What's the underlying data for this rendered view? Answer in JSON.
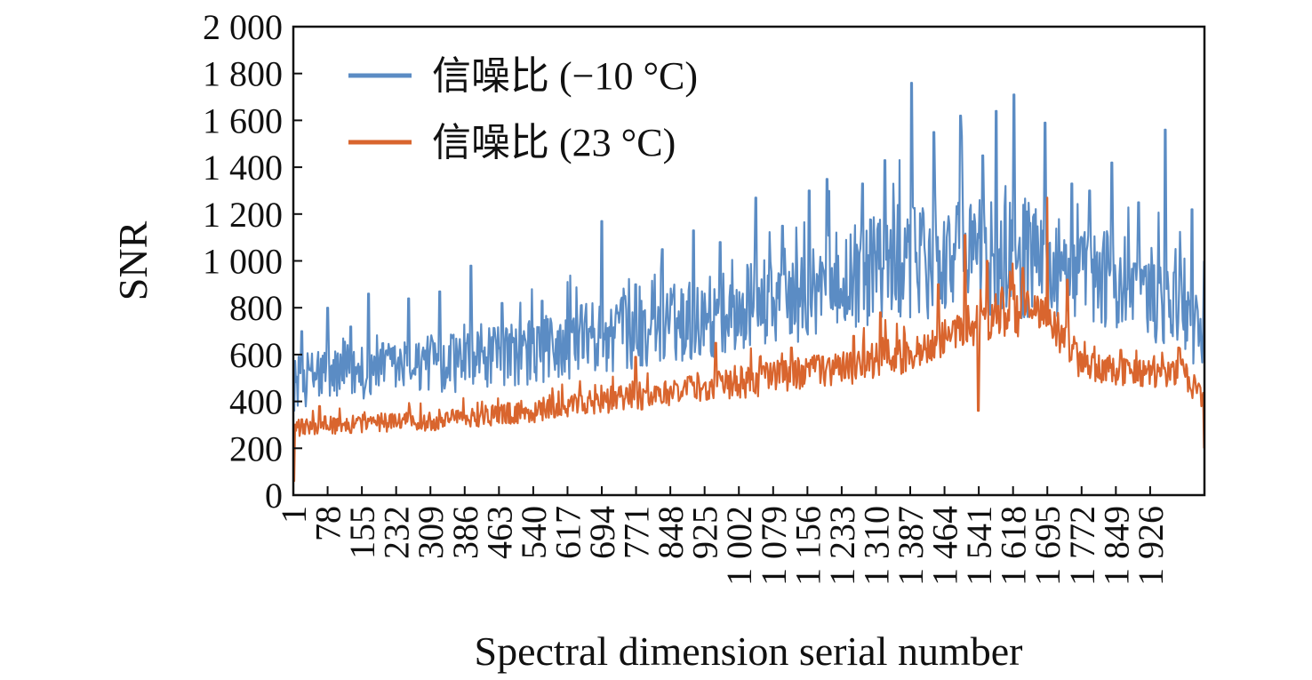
{
  "chart_data": {
    "type": "line",
    "title": "",
    "xlabel": "Spectral dimension serial number",
    "ylabel": "SNR",
    "x_range": [
      1,
      2048
    ],
    "ylim": [
      0,
      2000
    ],
    "grid": false,
    "legend_position": "top-left",
    "y_ticks": [
      {
        "value": 0,
        "label": "0"
      },
      {
        "value": 200,
        "label": "200"
      },
      {
        "value": 400,
        "label": "400"
      },
      {
        "value": 600,
        "label": "600"
      },
      {
        "value": 800,
        "label": "800"
      },
      {
        "value": 1000,
        "label": "1 000"
      },
      {
        "value": 1200,
        "label": "1 200"
      },
      {
        "value": 1400,
        "label": "1 400"
      },
      {
        "value": 1600,
        "label": "1 600"
      },
      {
        "value": 1800,
        "label": "1 800"
      },
      {
        "value": 2000,
        "label": "2 000"
      }
    ],
    "x_ticks": [
      {
        "value": 1,
        "label": "1"
      },
      {
        "value": 78,
        "label": "78"
      },
      {
        "value": 155,
        "label": "155"
      },
      {
        "value": 232,
        "label": "232"
      },
      {
        "value": 309,
        "label": "309"
      },
      {
        "value": 386,
        "label": "386"
      },
      {
        "value": 463,
        "label": "463"
      },
      {
        "value": 540,
        "label": "540"
      },
      {
        "value": 617,
        "label": "617"
      },
      {
        "value": 694,
        "label": "694"
      },
      {
        "value": 771,
        "label": "771"
      },
      {
        "value": 848,
        "label": "848"
      },
      {
        "value": 925,
        "label": "925"
      },
      {
        "value": 1002,
        "label": "1 002"
      },
      {
        "value": 1079,
        "label": "1 079"
      },
      {
        "value": 1156,
        "label": "1 156"
      },
      {
        "value": 1233,
        "label": "1 233"
      },
      {
        "value": 1310,
        "label": "1 310"
      },
      {
        "value": 1387,
        "label": "1 387"
      },
      {
        "value": 1464,
        "label": "1 464"
      },
      {
        "value": 1541,
        "label": "1 541"
      },
      {
        "value": 1618,
        "label": "1 618"
      },
      {
        "value": 1695,
        "label": "1 695"
      },
      {
        "value": 1772,
        "label": "1 772"
      },
      {
        "value": 1849,
        "label": "1 849"
      },
      {
        "value": 1926,
        "label": "1 926"
      }
    ],
    "series": [
      {
        "name": "信噪比 (−10 °C)",
        "color": "#5b8cc4",
        "x": [
          1,
          40,
          78,
          155,
          232,
          309,
          386,
          463,
          540,
          617,
          694,
          771,
          848,
          925,
          1002,
          1079,
          1156,
          1233,
          1310,
          1387,
          1464,
          1541,
          1618,
          1695,
          1772,
          1849,
          1926,
          2000,
          2048
        ],
        "baseline": [
          480,
          500,
          520,
          530,
          540,
          560,
          570,
          590,
          610,
          640,
          680,
          700,
          730,
          760,
          790,
          830,
          870,
          920,
          960,
          990,
          1000,
          1030,
          1030,
          980,
          920,
          880,
          860,
          850,
          600
        ],
        "spread": [
          110,
          120,
          120,
          120,
          120,
          120,
          130,
          130,
          140,
          150,
          160,
          160,
          170,
          180,
          190,
          200,
          210,
          220,
          230,
          240,
          250,
          260,
          270,
          240,
          220,
          210,
          210,
          210,
          150
        ],
        "spikes": [
          [
            20,
            700
          ],
          [
            78,
            800
          ],
          [
            130,
            720
          ],
          [
            170,
            860
          ],
          [
            260,
            840
          ],
          [
            330,
            870
          ],
          [
            400,
            980
          ],
          [
            470,
            820
          ],
          [
            560,
            830
          ],
          [
            617,
            910
          ],
          [
            694,
            1170
          ],
          [
            770,
            900
          ],
          [
            830,
            1050
          ],
          [
            900,
            1130
          ],
          [
            960,
            1080
          ],
          [
            1040,
            1270
          ],
          [
            1100,
            1150
          ],
          [
            1160,
            1300
          ],
          [
            1200,
            1350
          ],
          [
            1280,
            1330
          ],
          [
            1330,
            1430
          ],
          [
            1390,
            1760
          ],
          [
            1440,
            1550
          ],
          [
            1500,
            1620
          ],
          [
            1550,
            1450
          ],
          [
            1580,
            1640
          ],
          [
            1620,
            1710
          ],
          [
            1690,
            1590
          ],
          [
            1750,
            1330
          ],
          [
            1790,
            1300
          ],
          [
            1840,
            1420
          ],
          [
            1900,
            1250
          ],
          [
            1960,
            1560
          ],
          [
            2020,
            1220
          ]
        ]
      },
      {
        "name": "信噪比 (23 °C)",
        "color": "#d9652e",
        "x": [
          1,
          40,
          78,
          155,
          232,
          309,
          386,
          463,
          540,
          617,
          694,
          771,
          848,
          925,
          1002,
          1079,
          1156,
          1233,
          1310,
          1387,
          1464,
          1541,
          1618,
          1695,
          1772,
          1849,
          1926,
          2000,
          2048
        ],
        "baseline": [
          280,
          290,
          300,
          305,
          310,
          320,
          330,
          345,
          360,
          380,
          400,
          420,
          440,
          460,
          480,
          500,
          520,
          540,
          570,
          610,
          660,
          740,
          790,
          760,
          560,
          520,
          520,
          520,
          400
        ],
        "spread": [
          40,
          40,
          40,
          40,
          40,
          45,
          45,
          45,
          50,
          50,
          55,
          60,
          60,
          65,
          70,
          70,
          75,
          75,
          80,
          85,
          90,
          100,
          110,
          100,
          70,
          60,
          60,
          60,
          50
        ],
        "spikes": [
          [
            60,
            380
          ],
          [
            770,
            590
          ],
          [
            950,
            650
          ],
          [
            1120,
            630
          ],
          [
            1260,
            680
          ],
          [
            1320,
            780
          ],
          [
            1450,
            900
          ],
          [
            1510,
            1110
          ],
          [
            1560,
            1000
          ],
          [
            1640,
            970
          ],
          [
            1695,
            1270
          ],
          [
            1740,
            920
          ],
          [
            1540,
            360
          ],
          [
            1860,
            620
          ],
          [
            1990,
            630
          ]
        ]
      }
    ]
  }
}
